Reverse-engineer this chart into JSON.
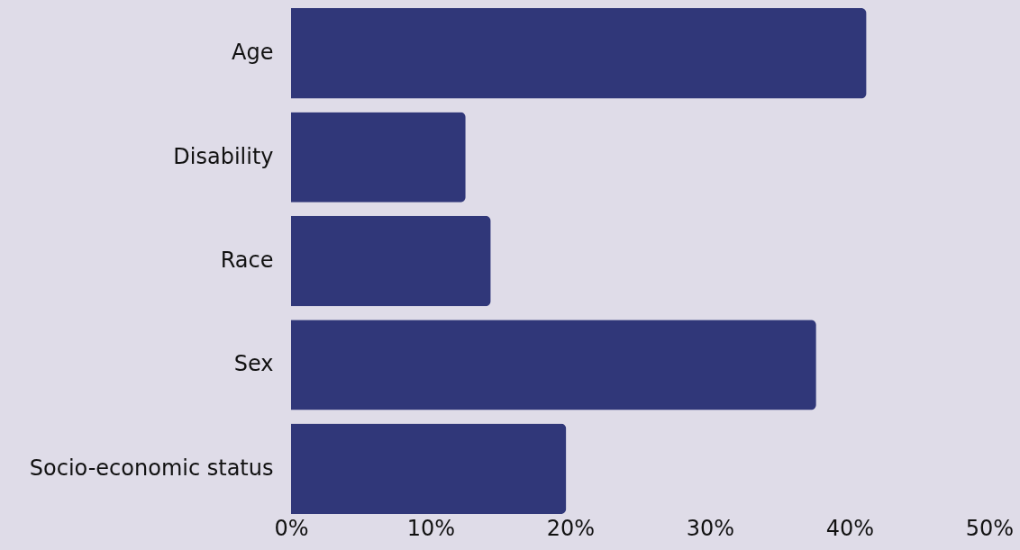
{
  "chart_data": {
    "type": "bar",
    "orientation": "horizontal",
    "categories": [
      "Age",
      "Disability",
      "Race",
      "Sex",
      "Socio-economic status"
    ],
    "values": [
      41.2,
      12.5,
      14.3,
      37.6,
      19.7
    ],
    "color": "#303779",
    "xlim": [
      0,
      50
    ],
    "xticks": [
      {
        "value": 0,
        "label": "0%"
      },
      {
        "value": 10,
        "label": "10%"
      },
      {
        "value": 20,
        "label": "20%"
      },
      {
        "value": 30,
        "label": "30%"
      },
      {
        "value": 40,
        "label": "40%"
      },
      {
        "value": 50,
        "label": "50%"
      }
    ],
    "grid": false
  }
}
